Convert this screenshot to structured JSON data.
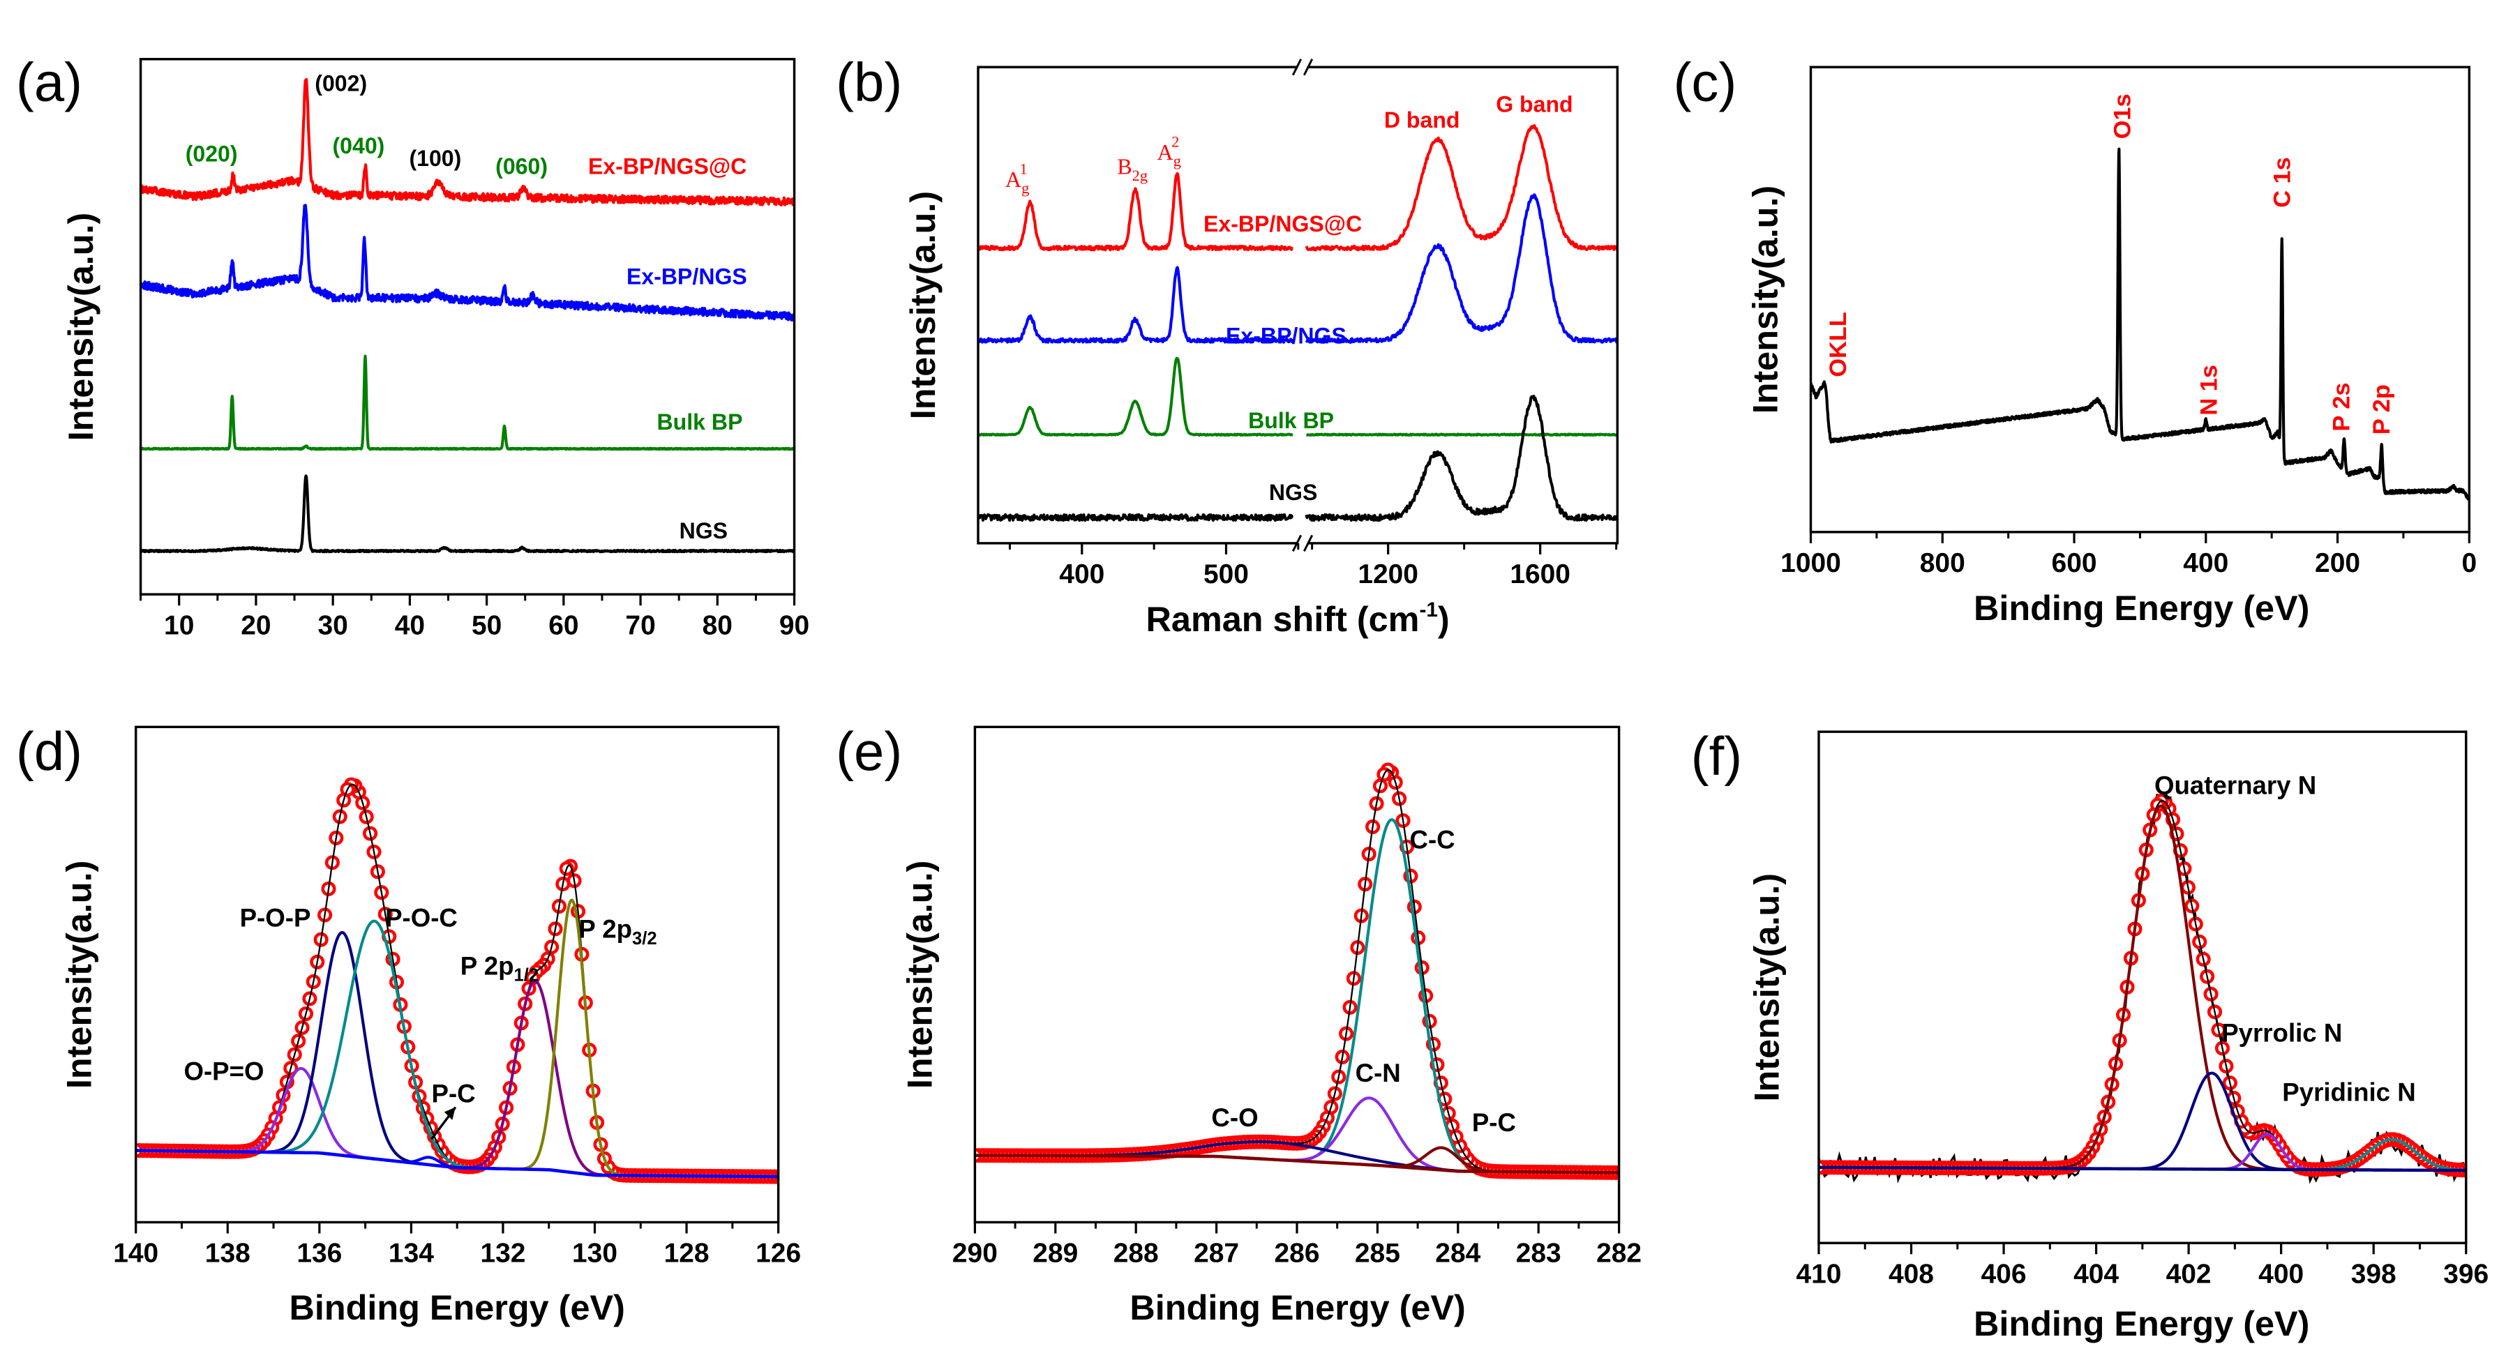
{
  "chart_data": [
    {
      "id": "a",
      "panel_label": "(a)",
      "type": "line",
      "xlabel": "",
      "ylabel": "Intensity(a.u.)",
      "xlim": [
        5,
        90
      ],
      "ylim": [
        0,
        100
      ],
      "x_ticks": [
        10,
        20,
        30,
        40,
        50,
        60,
        70,
        80,
        90
      ],
      "samples": 1400,
      "series": [
        {
          "ref": 5,
          "color": "#FF0000",
          "baseline": [
            [
              5,
              75.8
            ],
            [
              12,
              74.3
            ],
            [
              25,
              77.3
            ],
            [
              30,
              74.6
            ],
            [
              90,
              73.4
            ]
          ],
          "peaks": [
            [
              26.5,
              19.7,
              0.3
            ],
            [
              34.2,
              5.7,
              0.18
            ],
            [
              17,
              3,
              0.18
            ],
            [
              43.7,
              2.5,
              0.6
            ],
            [
              54.8,
              1.5,
              0.4
            ]
          ],
          "noise": 0.7
        },
        {
          "ref": 6,
          "color": "#0000FF",
          "baseline": [
            [
              5,
              57.9
            ],
            [
              12,
              56.1
            ],
            [
              25,
              59.1
            ],
            [
              30,
              55.5
            ],
            [
              45,
              55.2
            ],
            [
              90,
              51.9
            ]
          ],
          "peaks": [
            [
              26.4,
              14.6,
              0.3
            ],
            [
              34.1,
              10.7,
              0.18
            ],
            [
              16.9,
              5,
              0.18
            ],
            [
              43.5,
              1,
              0.6
            ],
            [
              52.3,
              2.5,
              0.18
            ],
            [
              56,
              1.5,
              0.3
            ]
          ],
          "noise": 0.7
        },
        {
          "ref": 7,
          "color": "#008000",
          "baseline": 27.2,
          "peaks": [
            [
              16.9,
              9.9,
              0.15
            ],
            [
              34.2,
              17.3,
              0.15
            ],
            [
              52.3,
              4.2,
              0.15
            ],
            [
              26.5,
              0.5,
              0.2
            ]
          ],
          "noise": 0.1
        },
        {
          "ref": 8,
          "color": "#000000",
          "baseline": 8.1,
          "peaks": [
            [
              26.5,
              14,
              0.25
            ],
            [
              19,
              0.5,
              2.5
            ],
            [
              44.5,
              0.6,
              0.4
            ],
            [
              54.6,
              0.6,
              0.3
            ]
          ],
          "noise": 0.15
        }
      ],
      "annotations": [
        {
          "text": "(002)",
          "color": "#000000"
        },
        {
          "text": "(020)",
          "color": "#008000"
        },
        {
          "text": "(040)",
          "color": "#008000"
        },
        {
          "text": "(100)",
          "color": "#000000"
        },
        {
          "text": "(060)",
          "color": "#008000"
        },
        {
          "text": "Ex-BP/NGS@C",
          "color": "#FF0000"
        },
        {
          "text": "Ex-BP/NGS",
          "color": "#0000FF"
        },
        {
          "text": "Bulk BP",
          "color": "#008000"
        },
        {
          "text": "NGS",
          "color": "#000000"
        }
      ]
    },
    {
      "id": "b",
      "panel_label": "(b)",
      "type": "line",
      "xlabel": {
        "main": "Raman shift (cm",
        "sup": "-1",
        "end": ")"
      },
      "ylabel": "Intensity(a.u.)",
      "x_segments": [
        [
          328,
          553
        ],
        [
          975,
          1803
        ]
      ],
      "x_break": true,
      "ylim": [
        0,
        100
      ],
      "x_ticks": [
        400,
        500,
        1200,
        1600
      ],
      "x_minor_ticks": [
        350,
        450,
        550,
        1000,
        1400,
        1800
      ],
      "samples": 900,
      "series": [
        {
          "ref": 5,
          "color": "#FF0000",
          "baseline": 62,
          "peaks": [
            [
              364,
              9.7,
              3
            ],
            [
              437,
              12.4,
              3
            ],
            [
              466,
              15.4,
              2.5
            ],
            [
              1330,
              22.8,
              45
            ],
            [
              1582,
              25.5,
              40
            ],
            [
              1480,
              2,
              40
            ]
          ],
          "noise": 0.4
        },
        {
          "ref": 6,
          "color": "#0000FF",
          "baseline": 42.6,
          "peaks": [
            [
              364,
              5,
              3
            ],
            [
              437,
              4.4,
              3
            ],
            [
              466,
              15.1,
              2.5
            ],
            [
              1330,
              19.8,
              45
            ],
            [
              1582,
              30.2,
              35
            ],
            [
              1480,
              2.5,
              40
            ]
          ],
          "noise": 0.4
        },
        {
          "ref": 7,
          "color": "#008000",
          "baseline": 22.8,
          "peaks": [
            [
              364,
              5.7,
              3.5
            ],
            [
              437,
              7,
              4
            ],
            [
              466,
              16.1,
              3
            ]
          ],
          "noise": 0.1
        },
        {
          "ref": 8,
          "color": "#000000",
          "baseline": 5.4,
          "peaks": [
            [
              1330,
              13.4,
              40
            ],
            [
              1582,
              25.2,
              30
            ],
            [
              1480,
              1.5,
              40
            ]
          ],
          "noise": 0.6
        }
      ],
      "annotations": [
        {
          "text": "A",
          "sub": "g",
          "sup": "1",
          "color": "#FF0000",
          "serif": true
        },
        {
          "text": "B",
          "sub": "2g",
          "color": "#FF0000",
          "serif": true
        },
        {
          "text": "A",
          "sub": "g",
          "sup": "2",
          "color": "#FF0000",
          "serif": true
        },
        {
          "text": "D band",
          "color": "#FF0000"
        },
        {
          "text": "G band",
          "color": "#FF0000"
        },
        {
          "text": "Ex-BP/NGS@C",
          "color": "#FF0000"
        },
        {
          "text": "Ex-BP/NGS",
          "color": "#0000FF"
        },
        {
          "text": "Bulk BP",
          "color": "#008000"
        },
        {
          "text": "NGS",
          "color": "#000000"
        }
      ]
    },
    {
      "id": "c",
      "panel_label": "(c)",
      "type": "line",
      "xlabel": "Binding Energy (eV)",
      "ylabel": "Intensity(a.u.)",
      "xlim": [
        1000,
        0
      ],
      "ylim": [
        0,
        100
      ],
      "x_ticks": [
        1000,
        800,
        600,
        400,
        200,
        0
      ],
      "samples": 2200,
      "series": [
        {
          "color": "#000000",
          "baseline": [
            [
              1000,
              32
            ],
            [
              992,
              29
            ],
            [
              985,
              31
            ],
            [
              970,
              19.6
            ],
            [
              580,
              26.5
            ],
            [
              565,
              28.5
            ],
            [
              555,
              26.8
            ],
            [
              545,
              21.6
            ],
            [
              525,
              20
            ],
            [
              320,
              23.4
            ],
            [
              310,
              24.4
            ],
            [
              300,
              20
            ],
            [
              290,
              21.6
            ],
            [
              284,
              14.8
            ],
            [
              220,
              16
            ],
            [
              210,
              17.5
            ],
            [
              200,
              14.8
            ],
            [
              185,
              12.4
            ],
            [
              150,
              13.7
            ],
            [
              145,
              12
            ],
            [
              135,
              11.5
            ],
            [
              128,
              8.6
            ],
            [
              10,
              8.9
            ],
            [
              0,
              6.9
            ]
          ],
          "peaks": [
            [
              978,
              6,
              3
            ],
            [
              532,
              62,
              1.5
            ],
            [
              400,
              2,
              1.5
            ],
            [
              284.5,
              48,
              1.3
            ],
            [
              190,
              7,
              1.5
            ],
            [
              133,
              8,
              1.5
            ],
            [
              25,
              1,
              3
            ]
          ],
          "noise": 0.35
        }
      ],
      "annotations": [
        {
          "text": "OKLL",
          "color": "#FF0000"
        },
        {
          "text": "O1s",
          "color": "#FF0000"
        },
        {
          "text": "C 1s",
          "color": "#FF0000"
        },
        {
          "text": "N 1s",
          "color": "#FF0000"
        },
        {
          "text": "P 2s",
          "color": "#FF0000"
        },
        {
          "text": "P 2p",
          "color": "#FF0000"
        }
      ]
    },
    {
      "id": "d",
      "panel_label": "(d)",
      "type": "line",
      "xlabel": "Binding Energy (eV)",
      "ylabel": "Intensity(a.u.)",
      "xlim": [
        140,
        126
      ],
      "ylim": [
        0,
        100
      ],
      "x_ticks": [
        140,
        138,
        136,
        134,
        132,
        130,
        128,
        126
      ],
      "samples": 700,
      "baseline": {
        "color": "#0000FF",
        "points": [
          [
            140,
            14.5
          ],
          [
            136,
            14
          ],
          [
            133,
            11
          ],
          [
            131,
            10.6
          ],
          [
            130,
            9.5
          ],
          [
            126,
            9.2
          ]
        ]
      },
      "components": [
        {
          "ref": 0,
          "color": "#8A2BE2",
          "peak": [
            136.4,
            17,
            0.4
          ]
        },
        {
          "ref": 1,
          "color": "#000080",
          "peak": [
            135.5,
            45,
            0.45
          ]
        },
        {
          "ref": 2,
          "color": "#008B8B",
          "peak": [
            134.8,
            48,
            0.6
          ]
        },
        {
          "ref": 3,
          "color": "#0000FF",
          "peak": [
            133.6,
            1.5,
            0.2
          ]
        },
        {
          "ref": 4,
          "color": "#800080",
          "peak": [
            131.3,
            38,
            0.42
          ]
        },
        {
          "ref": 5,
          "color": "#808000",
          "peak": [
            130.5,
            55,
            0.3
          ]
        }
      ],
      "envelope": {
        "color": "#FF0000",
        "marker": "open-circle"
      },
      "annotations": [
        {
          "text": "O-P=O",
          "color": "#000000"
        },
        {
          "text": "P-O-P",
          "color": "#000000"
        },
        {
          "text": "P-O-C",
          "color": "#000000"
        },
        {
          "text": "P-C",
          "color": "#000000"
        },
        {
          "text": "P 2p",
          "sub": "1/2",
          "color": "#000000"
        },
        {
          "text": "P 2p",
          "sub": "3/2",
          "color": "#000000"
        }
      ]
    },
    {
      "id": "e",
      "panel_label": "(e)",
      "type": "line",
      "xlabel": "Binding Energy (eV)",
      "ylabel": "Intensity(a.u.)",
      "xlim": [
        290,
        282
      ],
      "ylim": [
        0,
        100
      ],
      "x_ticks": [
        290,
        289,
        288,
        287,
        286,
        285,
        284,
        283,
        282
      ],
      "samples": 700,
      "baseline": {
        "color": "#800000",
        "points": [
          [
            290,
            13.5
          ],
          [
            287,
            13.3
          ],
          [
            285,
            11.5
          ],
          [
            284,
            10.3
          ],
          [
            282,
            10
          ]
        ]
      },
      "components": [
        {
          "ref": 0,
          "color": "#008B8B",
          "peak": [
            284.82,
            70,
            0.33
          ]
        },
        {
          "ref": 1,
          "color": "#8A2BE2",
          "peak": [
            285.1,
            13.5,
            0.3
          ]
        },
        {
          "ref": 2,
          "color": "#000080",
          "peak": [
            286.3,
            3.5,
            0.8
          ]
        },
        {
          "ref": 3,
          "color": "#800000",
          "peak": [
            284.2,
            4.5,
            0.2
          ]
        }
      ],
      "envelope": {
        "color": "#FF0000",
        "marker": "open-circle"
      },
      "annotations": [
        {
          "text": "C-C",
          "color": "#000000"
        },
        {
          "text": "C-N",
          "color": "#000000"
        },
        {
          "text": "C-O",
          "color": "#000000"
        },
        {
          "text": "P-C",
          "color": "#000000"
        }
      ]
    },
    {
      "id": "f",
      "panel_label": "(f)",
      "type": "line",
      "xlabel": "Binding Energy (eV)",
      "ylabel": "Intensity(a.u.)",
      "xlim": [
        410,
        396
      ],
      "ylim": [
        0,
        100
      ],
      "x_ticks": [
        410,
        408,
        406,
        404,
        402,
        400,
        398,
        396
      ],
      "samples": 700,
      "baseline": {
        "color": "#000080",
        "points": [
          [
            410,
            14.8
          ],
          [
            396,
            14.2
          ]
        ]
      },
      "components": [
        {
          "ref": 0,
          "color": "#800000",
          "peak": [
            402.6,
            71,
            0.62
          ]
        },
        {
          "ref": 1,
          "color": "#000080",
          "peak": [
            401.5,
            18.8,
            0.45
          ]
        },
        {
          "ref": 2,
          "color": "#8A2BE2",
          "peak": [
            400.3,
            6.9,
            0.3
          ]
        },
        {
          "color": "#008B8B",
          "peak": [
            397.6,
            6,
            0.5
          ]
        }
      ],
      "raw": {
        "color": "#000000",
        "noise": 2.5
      },
      "envelope": {
        "color": "#FF0000",
        "marker": "open-circle"
      },
      "annotations": [
        {
          "text": "Quaternary N",
          "color": "#000000"
        },
        {
          "text": "Pyrrolic N",
          "color": "#000000"
        },
        {
          "text": "Pyridinic N",
          "color": "#000000"
        }
      ]
    }
  ]
}
